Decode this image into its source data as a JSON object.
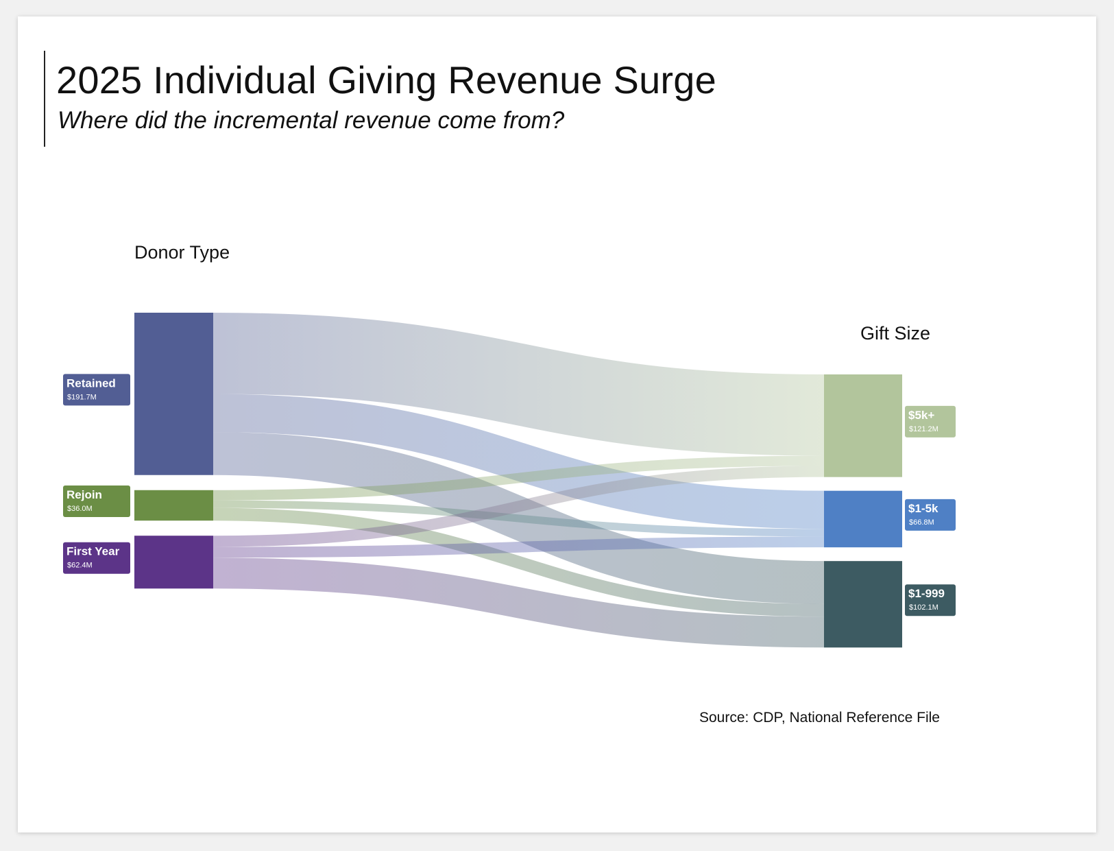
{
  "header": {
    "title": "2025 Individual Giving Revenue Surge",
    "subtitle": "Where did the incremental revenue come from?"
  },
  "footer": {
    "source": "Source: CDP, National Reference File"
  },
  "chart_data": {
    "type": "sankey",
    "source_column_label": "Donor Type",
    "target_column_label": "Gift Size",
    "sources": [
      {
        "name": "Retained",
        "value_label": "$191.7M",
        "value": 191.7,
        "color": "#525e94"
      },
      {
        "name": "Rejoin",
        "value_label": "$36.0M",
        "value": 36.0,
        "color": "#6b8e45"
      },
      {
        "name": "First Year",
        "value_label": "$62.4M",
        "value": 62.4,
        "color": "#5c3488"
      }
    ],
    "targets": [
      {
        "name": "$5k+",
        "value_label": "$121.2M",
        "value": 121.2,
        "color": "#b2c59c"
      },
      {
        "name": "$1-5k",
        "value_label": "$66.8M",
        "value": 66.8,
        "color": "#4f80c5"
      },
      {
        "name": "$1-999",
        "value_label": "$102.1M",
        "value": 102.1,
        "color": "#3d5b62"
      }
    ],
    "links": [
      {
        "source": "Retained",
        "target": "$5k+",
        "value": 96.0
      },
      {
        "source": "Retained",
        "target": "$1-5k",
        "value": 45.0
      },
      {
        "source": "Retained",
        "target": "$1-999",
        "value": 50.7
      },
      {
        "source": "Rejoin",
        "target": "$5k+",
        "value": 12.0
      },
      {
        "source": "Rejoin",
        "target": "$1-5k",
        "value": 9.0
      },
      {
        "source": "Rejoin",
        "target": "$1-999",
        "value": 15.0
      },
      {
        "source": "First Year",
        "target": "$5k+",
        "value": 13.2
      },
      {
        "source": "First Year",
        "target": "$1-5k",
        "value": 12.8
      },
      {
        "source": "First Year",
        "target": "$1-999",
        "value": 36.4
      }
    ]
  }
}
